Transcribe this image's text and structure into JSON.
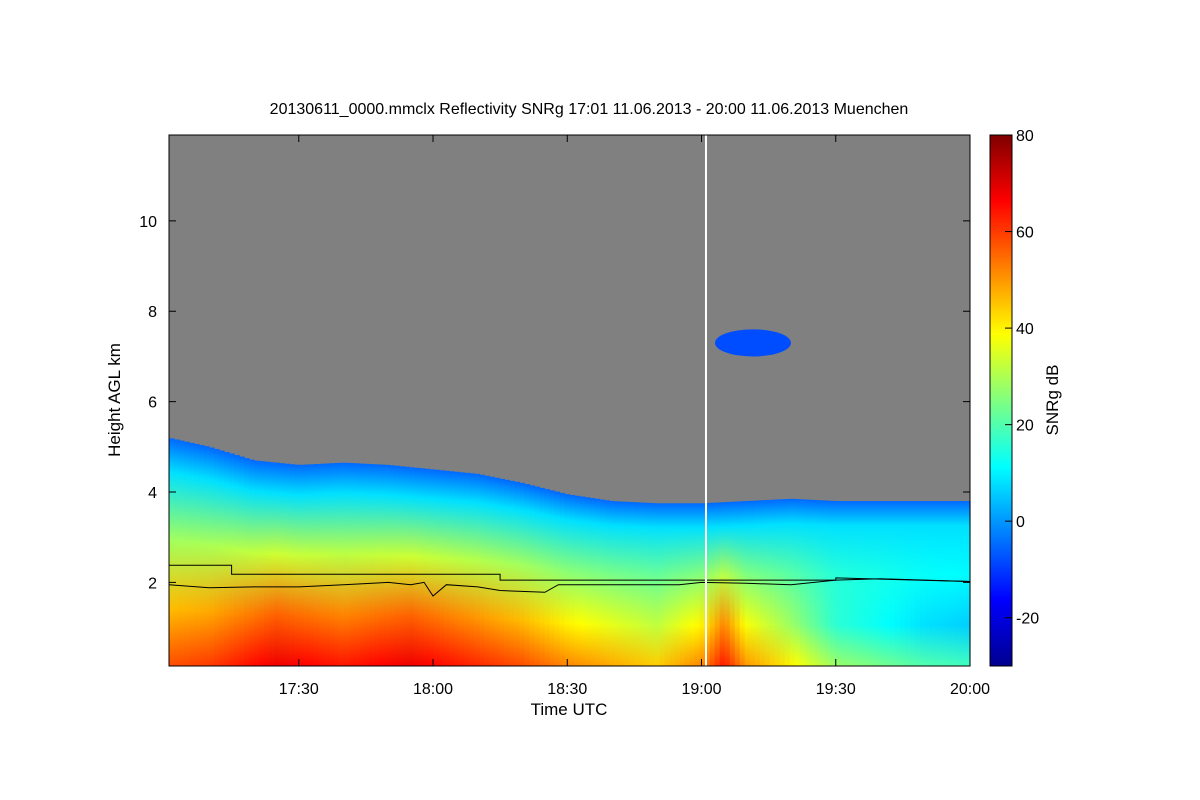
{
  "chart_data": {
    "type": "heatmap",
    "title": "20130611_0000.mmclx Reflectivity SNRg   17:01 11.06.2013 - 20:00 11.06.2013 Muenchen",
    "xlabel": "Time UTC",
    "ylabel": "Height AGL km",
    "x_range_min": [
      1021,
      1200
    ],
    "y_range_km": [
      0.15,
      11.9
    ],
    "x_ticks": [
      {
        "min": 1050,
        "label": "17:30"
      },
      {
        "min": 1080,
        "label": "18:00"
      },
      {
        "min": 1110,
        "label": "18:30"
      },
      {
        "min": 1140,
        "label": "19:00"
      },
      {
        "min": 1170,
        "label": "19:30"
      },
      {
        "min": 1200,
        "label": "20:00"
      }
    ],
    "y_ticks": [
      {
        "km": 2,
        "label": "2"
      },
      {
        "km": 4,
        "label": "4"
      },
      {
        "km": 6,
        "label": "6"
      },
      {
        "km": 8,
        "label": "8"
      },
      {
        "km": 10,
        "label": "10"
      }
    ],
    "colorbar": {
      "label": "SNRg dB",
      "range": [
        -30,
        80
      ],
      "ticks": [
        {
          "v": -20,
          "label": "-20"
        },
        {
          "v": 0,
          "label": "0"
        },
        {
          "v": 20,
          "label": "20"
        },
        {
          "v": 40,
          "label": "40"
        },
        {
          "v": 60,
          "label": "60"
        },
        {
          "v": 80,
          "label": "80"
        }
      ],
      "colors": [
        "#00008f",
        "#0000ff",
        "#0080ff",
        "#00ffff",
        "#80ff80",
        "#ffff00",
        "#ff8000",
        "#ff0000",
        "#800000"
      ]
    },
    "no_signal_color": "#808080",
    "data_gap_min": 1141,
    "signal_top_km": [
      {
        "t": 1021,
        "h": 5.2
      },
      {
        "t": 1030,
        "h": 5.0
      },
      {
        "t": 1040,
        "h": 4.7
      },
      {
        "t": 1050,
        "h": 4.6
      },
      {
        "t": 1060,
        "h": 4.65
      },
      {
        "t": 1070,
        "h": 4.6
      },
      {
        "t": 1080,
        "h": 4.5
      },
      {
        "t": 1090,
        "h": 4.4
      },
      {
        "t": 1100,
        "h": 4.2
      },
      {
        "t": 1110,
        "h": 3.95
      },
      {
        "t": 1120,
        "h": 3.8
      },
      {
        "t": 1130,
        "h": 3.75
      },
      {
        "t": 1140,
        "h": 3.75
      },
      {
        "t": 1150,
        "h": 3.8
      },
      {
        "t": 1160,
        "h": 3.85
      },
      {
        "t": 1170,
        "h": 3.8
      },
      {
        "t": 1180,
        "h": 3.8
      },
      {
        "t": 1190,
        "h": 3.8
      },
      {
        "t": 1200,
        "h": 3.8
      }
    ],
    "surface_snr_db": [
      {
        "t": 1021,
        "v": 58
      },
      {
        "t": 1030,
        "v": 60
      },
      {
        "t": 1045,
        "v": 68
      },
      {
        "t": 1060,
        "v": 64
      },
      {
        "t": 1075,
        "v": 68
      },
      {
        "t": 1090,
        "v": 62
      },
      {
        "t": 1100,
        "v": 58
      },
      {
        "t": 1110,
        "v": 52
      },
      {
        "t": 1120,
        "v": 48
      },
      {
        "t": 1130,
        "v": 44
      },
      {
        "t": 1140,
        "v": 52
      },
      {
        "t": 1145,
        "v": 64
      },
      {
        "t": 1150,
        "v": 50
      },
      {
        "t": 1160,
        "v": 40
      },
      {
        "t": 1170,
        "v": 28
      },
      {
        "t": 1180,
        "v": 24
      },
      {
        "t": 1190,
        "v": 20
      },
      {
        "t": 1200,
        "v": 18
      }
    ],
    "upper_cloud": {
      "t_start": 1143,
      "t_end": 1160,
      "h_low": 7.0,
      "h_high": 7.6
    },
    "boundary_layer_lines": [
      {
        "name": "upper-line",
        "points": [
          [
            1021,
            2.38
          ],
          [
            1035,
            2.38
          ],
          [
            1035,
            2.18
          ],
          [
            1060,
            2.18
          ],
          [
            1095,
            2.18
          ],
          [
            1095,
            2.05
          ],
          [
            1135,
            2.05
          ],
          [
            1170,
            2.05
          ],
          [
            1170,
            2.1
          ],
          [
            1200,
            2.02
          ]
        ]
      },
      {
        "name": "lower-line",
        "points": [
          [
            1021,
            1.95
          ],
          [
            1030,
            1.88
          ],
          [
            1040,
            1.9
          ],
          [
            1050,
            1.9
          ],
          [
            1060,
            1.95
          ],
          [
            1070,
            2.0
          ],
          [
            1075,
            1.95
          ],
          [
            1078,
            2.0
          ],
          [
            1080,
            1.7
          ],
          [
            1083,
            1.95
          ],
          [
            1090,
            1.9
          ],
          [
            1095,
            1.82
          ],
          [
            1105,
            1.78
          ],
          [
            1108,
            1.95
          ],
          [
            1120,
            1.95
          ],
          [
            1135,
            1.95
          ],
          [
            1140,
            2.0
          ],
          [
            1150,
            1.98
          ],
          [
            1160,
            1.95
          ],
          [
            1170,
            2.05
          ],
          [
            1180,
            2.08
          ],
          [
            1190,
            2.05
          ],
          [
            1200,
            2.02
          ]
        ]
      }
    ]
  }
}
